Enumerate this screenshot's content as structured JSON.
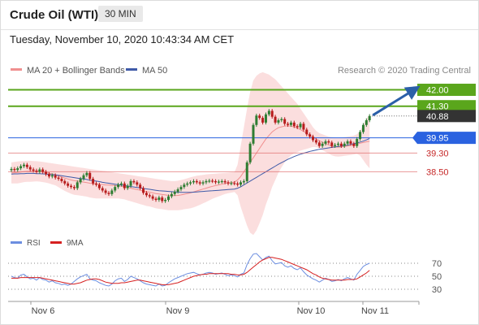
{
  "header": {
    "title": "Crude Oil (WTI)",
    "timeframe": "30 MIN"
  },
  "timestamp": "Tuesday, November 10, 2020 10:43:34 AM CET",
  "legend": {
    "bollinger": "MA 20 + Bollinger Bands",
    "ma50": "MA 50",
    "credit": "Research © 2020 Trading Central",
    "rsi": "RSI",
    "rsi_ma": "9MA"
  },
  "colors": {
    "bollinger": "#f08f8f",
    "band_fill": "#fbdada",
    "ma50": "#3f5aa8",
    "resistance": "#5aa61c",
    "pivot": "#2a62e0",
    "support": "#e06a6a",
    "candle_up": "#2e7d32",
    "candle_down": "#b71c1c",
    "last_price": "#333333",
    "arrow": "#2b5fa8",
    "rsi": "#6c8ee0",
    "rsi_ma": "#d62020"
  },
  "chart_data": [
    {
      "type": "candlestick",
      "title": "Crude Oil (WTI)",
      "timeframe": "30 MIN",
      "x_labels": [
        "Nov 6",
        "Nov 9",
        "Nov 10",
        "Nov 11"
      ],
      "ylim": [
        35.6,
        42.4
      ],
      "levels": [
        {
          "value": 42.0,
          "label": "42.00",
          "kind": "resistance"
        },
        {
          "value": 41.3,
          "label": "41.30",
          "kind": "resistance"
        },
        {
          "value": 40.88,
          "label": "40.88",
          "kind": "last"
        },
        {
          "value": 39.95,
          "label": "39.95",
          "kind": "pivot"
        },
        {
          "value": 39.3,
          "label": "39.30",
          "kind": "support"
        },
        {
          "value": 38.5,
          "label": "38.50",
          "kind": "support"
        }
      ],
      "forecast_target": 42.0,
      "close": [
        38.62,
        38.58,
        38.65,
        38.74,
        38.8,
        38.7,
        38.6,
        38.55,
        38.5,
        38.6,
        38.5,
        38.4,
        38.3,
        38.35,
        38.25,
        38.2,
        38.1,
        38.0,
        37.9,
        37.85,
        37.8,
        38.05,
        38.2,
        38.35,
        38.45,
        38.2,
        38.0,
        37.95,
        37.8,
        37.7,
        37.6,
        37.55,
        37.7,
        37.85,
        37.95,
        38.0,
        37.8,
        37.9,
        38.1,
        38.05,
        37.95,
        37.8,
        37.6,
        37.5,
        37.45,
        37.35,
        37.3,
        37.4,
        37.25,
        37.3,
        37.45,
        37.55,
        37.65,
        37.75,
        37.85,
        37.95,
        38.0,
        38.05,
        38.1,
        38.05,
        38.0,
        38.05,
        38.1,
        38.12,
        38.1,
        38.05,
        38.08,
        38.1,
        38.05,
        38.0,
        38.02,
        38.0,
        37.95,
        38.05,
        38.1,
        38.9,
        39.7,
        40.5,
        40.9,
        40.8,
        40.6,
        40.95,
        41.1,
        40.85,
        40.6,
        40.7,
        40.75,
        40.55,
        40.5,
        40.6,
        40.45,
        40.4,
        40.55,
        40.3,
        40.1,
        40.0,
        39.85,
        39.75,
        39.6,
        39.7,
        39.8,
        39.75,
        39.6,
        39.65,
        39.7,
        39.6,
        39.7,
        39.8,
        39.7,
        39.6,
        39.9,
        40.2,
        40.5,
        40.7,
        40.88
      ],
      "ma20": [
        38.45,
        38.46,
        38.47,
        38.49,
        38.51,
        38.52,
        38.52,
        38.52,
        38.52,
        38.51,
        38.49,
        38.47,
        38.44,
        38.41,
        38.38,
        38.33,
        38.28,
        38.23,
        38.19,
        38.15,
        38.12,
        38.1,
        38.08,
        38.06,
        38.04,
        38.01,
        37.99,
        37.97,
        37.96,
        37.95,
        37.94,
        37.93,
        37.92,
        37.91,
        37.9,
        37.88,
        37.86,
        37.83,
        37.8,
        37.77,
        37.74,
        37.71,
        37.68,
        37.65,
        37.63,
        37.6,
        37.57,
        37.55,
        37.53,
        37.51,
        37.49,
        37.48,
        37.48,
        37.49,
        37.51,
        37.54,
        37.57,
        37.6,
        37.64,
        37.68,
        37.72,
        37.76,
        37.8,
        37.84,
        37.88,
        37.91,
        37.94,
        37.97,
        38.0,
        38.02,
        38.04,
        38.06,
        38.15,
        38.3,
        38.5,
        38.7,
        38.9,
        39.1,
        39.3,
        39.5,
        39.7,
        39.9,
        40.05,
        40.2,
        40.3,
        40.38,
        40.42,
        40.45,
        40.46,
        40.45,
        40.42,
        40.37,
        40.3,
        40.22,
        40.14,
        40.06,
        39.98,
        39.9,
        39.83,
        39.76,
        39.7,
        39.64,
        39.59,
        39.56,
        39.55,
        39.56,
        39.58,
        39.6,
        39.62,
        39.64,
        39.68,
        39.72,
        39.75,
        39.78,
        39.8
      ],
      "bb_upper": [
        38.9,
        38.92,
        38.94,
        38.95,
        38.96,
        38.97,
        38.97,
        38.96,
        38.95,
        38.94,
        38.92,
        38.9,
        38.88,
        38.86,
        38.84,
        38.82,
        38.8,
        38.78,
        38.76,
        38.74,
        38.72,
        38.7,
        38.68,
        38.66,
        38.64,
        38.62,
        38.6,
        38.58,
        38.56,
        38.54,
        38.52,
        38.5,
        38.48,
        38.46,
        38.44,
        38.42,
        38.4,
        38.38,
        38.36,
        38.34,
        38.32,
        38.3,
        38.28,
        38.26,
        38.24,
        38.22,
        38.2,
        38.18,
        38.16,
        38.14,
        38.12,
        38.1,
        38.1,
        38.12,
        38.15,
        38.18,
        38.22,
        38.26,
        38.3,
        38.33,
        38.35,
        38.37,
        38.39,
        38.4,
        38.41,
        38.42,
        38.43,
        38.44,
        38.45,
        38.46,
        38.47,
        38.48,
        38.8,
        39.6,
        40.4,
        41.2,
        41.9,
        42.4,
        42.6,
        42.7,
        42.75,
        42.7,
        42.65,
        42.55,
        42.45,
        42.3,
        42.15,
        42.0,
        41.85,
        41.7,
        41.55,
        41.4,
        41.2,
        41.0,
        40.8,
        40.6,
        40.4,
        40.25,
        40.15,
        40.1,
        40.05,
        40.0,
        39.98,
        39.96,
        39.95,
        39.96,
        39.98,
        40.0,
        40.02,
        40.04,
        40.1,
        40.25,
        40.5,
        40.75,
        40.95
      ],
      "bb_lower": [
        38.0,
        38.0,
        38.0,
        38.03,
        38.06,
        38.07,
        38.07,
        38.08,
        38.09,
        38.08,
        38.06,
        38.04,
        38.0,
        37.96,
        37.92,
        37.84,
        37.76,
        37.68,
        37.62,
        37.56,
        37.52,
        37.5,
        37.48,
        37.46,
        37.44,
        37.4,
        37.38,
        37.36,
        37.36,
        37.36,
        37.36,
        37.36,
        37.36,
        37.36,
        37.36,
        37.34,
        37.32,
        37.28,
        37.24,
        37.2,
        37.16,
        37.12,
        37.08,
        37.04,
        37.02,
        36.98,
        36.94,
        36.92,
        36.9,
        36.88,
        36.86,
        36.86,
        36.86,
        36.86,
        36.87,
        36.9,
        36.92,
        36.94,
        36.98,
        37.03,
        37.09,
        37.15,
        37.21,
        37.28,
        37.35,
        37.4,
        37.45,
        37.5,
        37.55,
        37.58,
        37.61,
        37.64,
        37.5,
        37.0,
        36.6,
        36.2,
        35.9,
        35.8,
        36.0,
        36.3,
        36.65,
        37.1,
        37.45,
        37.85,
        38.15,
        38.46,
        38.69,
        38.9,
        39.07,
        39.2,
        39.29,
        39.34,
        39.4,
        39.44,
        39.48,
        39.52,
        39.56,
        39.55,
        39.51,
        39.42,
        39.35,
        39.28,
        39.2,
        39.16,
        39.15,
        39.16,
        39.18,
        39.2,
        39.22,
        39.24,
        39.26,
        39.19,
        39.0,
        38.81,
        38.65
      ],
      "ma50": [
        38.4,
        38.41,
        38.41,
        38.42,
        38.42,
        38.43,
        38.43,
        38.43,
        38.42,
        38.42,
        38.41,
        38.4,
        38.39,
        38.38,
        38.37,
        38.35,
        38.33,
        38.31,
        38.29,
        38.27,
        38.25,
        38.23,
        38.21,
        38.19,
        38.17,
        38.14,
        38.12,
        38.1,
        38.08,
        38.05,
        38.03,
        38.01,
        37.99,
        37.97,
        37.95,
        37.93,
        37.91,
        37.89,
        37.87,
        37.85,
        37.83,
        37.81,
        37.79,
        37.77,
        37.75,
        37.73,
        37.71,
        37.69,
        37.68,
        37.67,
        37.66,
        37.65,
        37.64,
        37.63,
        37.62,
        37.62,
        37.62,
        37.62,
        37.63,
        37.64,
        37.65,
        37.66,
        37.67,
        37.68,
        37.69,
        37.7,
        37.71,
        37.72,
        37.73,
        37.74,
        37.75,
        37.76,
        37.8,
        37.86,
        37.94,
        38.02,
        38.1,
        38.18,
        38.26,
        38.34,
        38.42,
        38.5,
        38.58,
        38.66,
        38.74,
        38.82,
        38.89,
        38.96,
        39.03,
        39.09,
        39.15,
        39.2,
        39.25,
        39.29,
        39.33,
        39.37,
        39.4,
        39.43,
        39.46,
        39.48,
        39.5,
        39.52,
        39.54,
        39.56,
        39.58,
        39.6,
        39.62,
        39.64,
        39.67,
        39.7,
        39.73,
        39.77,
        39.81,
        39.86,
        39.92
      ]
    },
    {
      "type": "line",
      "title": "RSI",
      "ylim": [
        15,
        90
      ],
      "y_ticks": [
        70,
        50,
        30
      ],
      "series": [
        {
          "name": "RSI",
          "values": [
            50,
            48,
            47,
            52,
            53,
            49,
            46,
            47,
            44,
            48,
            45,
            44,
            41,
            43,
            40,
            39,
            37,
            38,
            36,
            38,
            42,
            46,
            49,
            51,
            53,
            46,
            44,
            43,
            40,
            38,
            36,
            35,
            38,
            43,
            46,
            47,
            42,
            45,
            50,
            48,
            46,
            43,
            40,
            38,
            37,
            36,
            35,
            38,
            35,
            36,
            40,
            43,
            46,
            48,
            50,
            52,
            54,
            55,
            56,
            54,
            52,
            53,
            55,
            56,
            55,
            53,
            54,
            55,
            53,
            51,
            52,
            51,
            49,
            53,
            55,
            68,
            77,
            84,
            85,
            80,
            75,
            79,
            81,
            74,
            69,
            70,
            71,
            66,
            64,
            66,
            62,
            60,
            63,
            57,
            52,
            49,
            46,
            44,
            41,
            44,
            47,
            45,
            42,
            43,
            45,
            43,
            46,
            48,
            46,
            44,
            53,
            59,
            65,
            68,
            70
          ]
        },
        {
          "name": "9MA",
          "values": [
            47,
            47,
            47,
            48,
            48,
            48,
            48,
            48,
            48,
            48,
            47,
            46,
            45,
            44,
            43,
            42,
            41,
            40,
            39,
            38,
            38,
            39,
            40,
            42,
            44,
            45,
            46,
            46,
            45,
            43,
            41,
            40,
            39,
            39,
            39,
            40,
            40,
            41,
            42,
            43,
            44,
            44,
            43,
            42,
            41,
            40,
            39,
            38,
            37,
            37,
            37,
            38,
            39,
            40,
            42,
            44,
            46,
            48,
            50,
            51,
            52,
            53,
            53,
            54,
            54,
            54,
            54,
            54,
            54,
            54,
            53,
            53,
            52,
            52,
            53,
            56,
            60,
            64,
            68,
            72,
            75,
            77,
            79,
            79,
            78,
            77,
            76,
            74,
            72,
            70,
            68,
            66,
            64,
            62,
            60,
            57,
            54,
            52,
            49,
            47,
            46,
            45,
            44,
            44,
            44,
            44,
            44,
            45,
            45,
            45,
            46,
            49,
            52,
            55,
            59
          ]
        }
      ]
    }
  ]
}
